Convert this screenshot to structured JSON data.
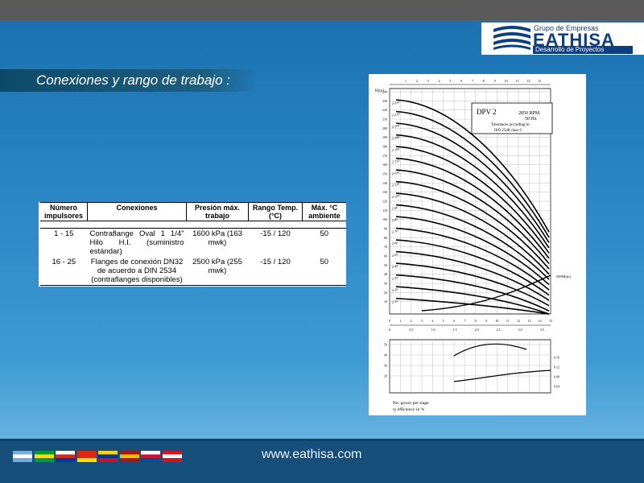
{
  "brand": {
    "group": "Grupo de Empresas",
    "name": "EATHISA",
    "subtitle": "Desarrollo de Proyectos"
  },
  "slide_title": "Conexiones y rango de trabajo :",
  "table": {
    "headers": [
      "Número impulsores",
      "Conexiones",
      "Presión máx. trabajo",
      "Rango Temp. (°C)",
      "Máx. °C ambiente"
    ],
    "rows": [
      {
        "impulsores": "1 - 15",
        "conexiones": "Contraflange Oval 1 1/4\" Hilo H.I. (suministro estándar)",
        "presion": "1600 kPa (163 mwk)",
        "rango": "-15 / 120",
        "max": "50"
      },
      {
        "impulsores": "16 - 25",
        "conexiones": "Flanges de conexión DN32 de acuerdo a DIN 2534 (contraflanges disponibles)",
        "presion": "2500 kPa (255 mwk)",
        "rango": "-15 / 120",
        "max": "50"
      }
    ]
  },
  "chart": {
    "model": "DPV 2",
    "rpm": "2850 RPM",
    "hz": "50 Hz",
    "tol1": "Tolerances according to",
    "tol2": "ISO 2548 class C",
    "legend1": "Pst: power per stage",
    "legend2": "η: efficiency in %",
    "y_label": "H[m]",
    "npsh": "NPSH[m]",
    "curve_labels": [
      "2-250",
      "2-230",
      "2-200",
      "2-180",
      "2-160",
      "2-150",
      "2-130",
      "2-110",
      "2-100",
      "2-90",
      "2-80",
      "2-70",
      "2-60",
      "2-50",
      "2-40",
      "2-30",
      "2-20",
      "2-10"
    ],
    "y_ticks": [
      "240",
      "230",
      "220",
      "210",
      "200",
      "190",
      "180",
      "170",
      "160",
      "150",
      "140",
      "130",
      "120",
      "110",
      "100",
      "90",
      "80",
      "70",
      "60",
      "50",
      "40",
      "30",
      "20",
      "10"
    ],
    "x_ticks_top": [
      "1",
      "2",
      "3",
      "4",
      "5",
      "6",
      "7",
      "8",
      "9",
      "10",
      "11",
      "12",
      "13"
    ],
    "x_ticks_m3h": [
      "0",
      "1",
      "2",
      "3",
      "4",
      "5",
      "6",
      "7",
      "8",
      "9",
      "10",
      "11",
      "12",
      "13",
      "14",
      "15"
    ],
    "x_ticks_ls": [
      "0",
      "0.5",
      "1.0",
      "1.5",
      "2.0",
      "2.5",
      "3.0",
      "3.5"
    ],
    "eff_ticks": [
      "50",
      "40",
      "30",
      "20"
    ],
    "pw_ticks": [
      "0.16",
      "0.12",
      "0.08",
      "0.04"
    ]
  },
  "website": "www.eathisa.com",
  "flags": [
    {
      "name": "argentina-flag",
      "c1": "#74acdf",
      "c2": "#ffffff",
      "c3": "#74acdf"
    },
    {
      "name": "brazil-flag",
      "c1": "#009c3b",
      "c2": "#ffdf00",
      "c3": "#009c3b"
    },
    {
      "name": "chile-flag",
      "c1": "#ffffff",
      "c2": "#d52b1e",
      "c3": "#0039a6"
    },
    {
      "name": "china-flag",
      "c1": "#de2910",
      "c2": "#de2910",
      "c3": "#ffde00"
    },
    {
      "name": "colombia-flag",
      "c1": "#fcd116",
      "c2": "#003893",
      "c3": "#ce1126"
    },
    {
      "name": "spain-flag",
      "c1": "#aa151b",
      "c2": "#f1bf00",
      "c3": "#aa151b"
    },
    {
      "name": "panama-flag",
      "c1": "#ffffff",
      "c2": "#d21034",
      "c3": "#005293"
    },
    {
      "name": "peru-flag",
      "c1": "#d91023",
      "c2": "#ffffff",
      "c3": "#d91023"
    }
  ]
}
